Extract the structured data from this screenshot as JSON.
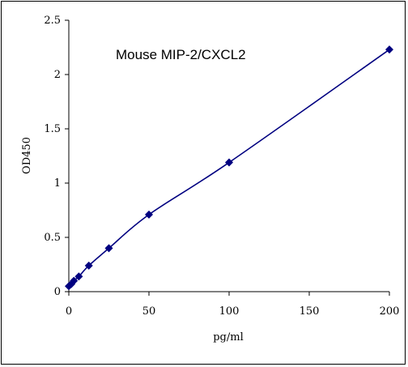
{
  "chart_data": {
    "type": "scatter",
    "title": "Mouse    MIP-2/CXCL2",
    "xlabel": "pg/ml",
    "ylabel": "OD450",
    "xlim": [
      0,
      200
    ],
    "ylim": [
      0,
      2.5
    ],
    "x_ticks": [
      "0",
      "50",
      "100",
      "150",
      "200"
    ],
    "x_tick_values": [
      0,
      50,
      100,
      150,
      200
    ],
    "y_ticks": [
      "0",
      "0.5",
      "1",
      "1.5",
      "2",
      "2.5"
    ],
    "y_tick_values": [
      0,
      0.5,
      1,
      1.5,
      2,
      2.5
    ],
    "grid": false,
    "line_smoothed": true,
    "marker": "diamond",
    "colors": {
      "series": "#000080",
      "axis": "#000000"
    },
    "series": [
      {
        "x": [
          0,
          1.56,
          3.125,
          6.25,
          12.5,
          25,
          50,
          100,
          200
        ],
        "y": [
          0.05,
          0.07,
          0.1,
          0.14,
          0.24,
          0.4,
          0.71,
          1.19,
          2.23
        ]
      }
    ]
  }
}
